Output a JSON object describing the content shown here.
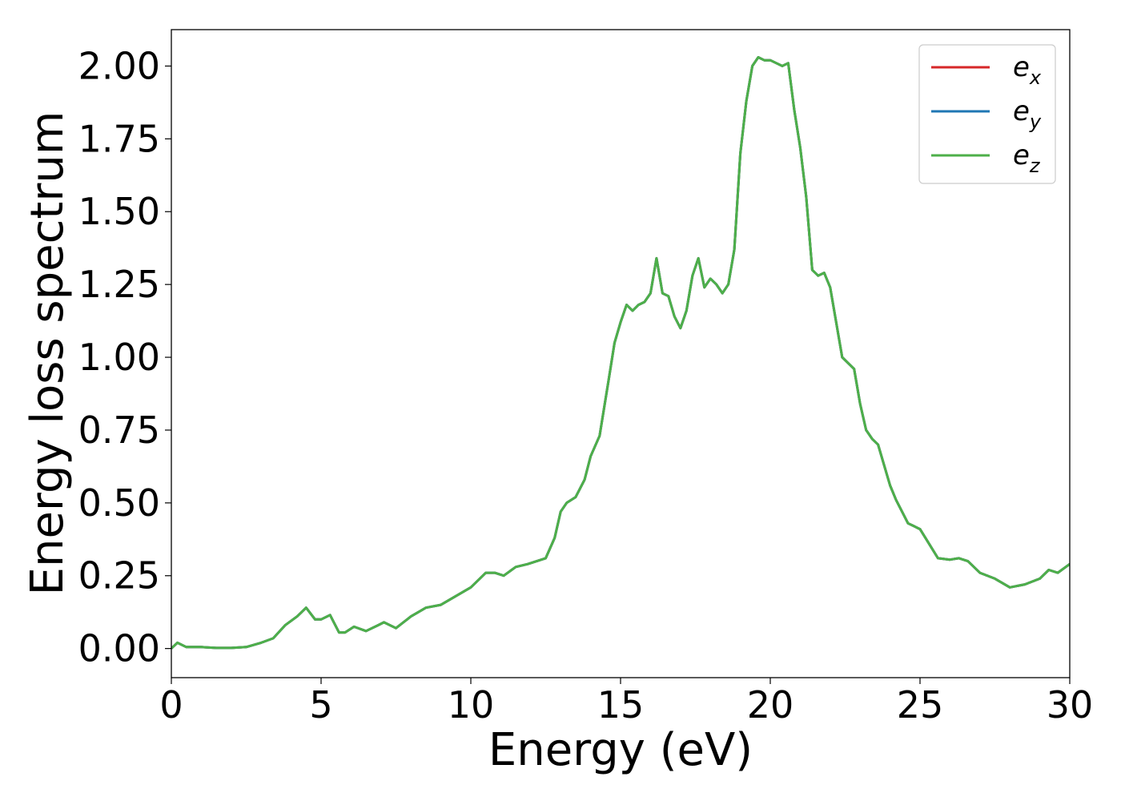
{
  "chart_data": {
    "type": "line",
    "xlabel": "Energy (eV)",
    "ylabel": "Energy loss spectrum",
    "xlim": [
      0,
      30
    ],
    "ylim": [
      -0.1,
      2.125
    ],
    "x_ticks": [
      "0",
      "5",
      "10",
      "15",
      "20",
      "25",
      "30"
    ],
    "x_tick_values": [
      0,
      5,
      10,
      15,
      20,
      25,
      30
    ],
    "y_ticks": [
      "0.00",
      "0.25",
      "0.50",
      "0.75",
      "1.00",
      "1.25",
      "1.50",
      "1.75",
      "2.00"
    ],
    "y_tick_values": [
      0,
      0.25,
      0.5,
      0.75,
      1.0,
      1.25,
      1.5,
      1.75,
      2.0
    ],
    "grid": false,
    "legend_position": "top-right",
    "series": [
      {
        "name": "e",
        "subscript": "x",
        "color": "#d62728"
      },
      {
        "name": "e",
        "subscript": "y",
        "color": "#1f77b4"
      },
      {
        "name": "e",
        "subscript": "z",
        "color": "#4daf4a"
      }
    ],
    "x": [
      0,
      0.2,
      0.5,
      1.0,
      1.5,
      2.0,
      2.5,
      3.0,
      3.4,
      3.8,
      4.2,
      4.5,
      4.8,
      5.0,
      5.3,
      5.6,
      5.8,
      6.1,
      6.5,
      6.9,
      7.1,
      7.5,
      8.0,
      8.5,
      9.0,
      9.5,
      10.0,
      10.3,
      10.5,
      10.8,
      11.1,
      11.5,
      11.9,
      12.2,
      12.5,
      12.8,
      13.0,
      13.2,
      13.5,
      13.8,
      14.0,
      14.3,
      14.6,
      14.8,
      15.0,
      15.2,
      15.4,
      15.6,
      15.8,
      16.0,
      16.2,
      16.4,
      16.6,
      16.8,
      17.0,
      17.2,
      17.4,
      17.6,
      17.8,
      18.0,
      18.2,
      18.4,
      18.6,
      18.8,
      19.0,
      19.2,
      19.4,
      19.6,
      19.8,
      20.0,
      20.2,
      20.4,
      20.6,
      20.8,
      21.0,
      21.2,
      21.4,
      21.6,
      21.8,
      22.0,
      22.2,
      22.4,
      22.6,
      22.8,
      23.0,
      23.2,
      23.4,
      23.6,
      23.8,
      24.0,
      24.2,
      24.4,
      24.6,
      24.8,
      25.0,
      25.3,
      25.6,
      26.0,
      26.3,
      26.6,
      27.0,
      27.5,
      28.0,
      28.5,
      29.0,
      29.3,
      29.6,
      30.0
    ],
    "y": [
      0.0,
      0.02,
      0.005,
      0.005,
      0.002,
      0.002,
      0.005,
      0.02,
      0.035,
      0.08,
      0.11,
      0.14,
      0.1,
      0.1,
      0.115,
      0.055,
      0.055,
      0.075,
      0.06,
      0.08,
      0.09,
      0.07,
      0.11,
      0.14,
      0.15,
      0.18,
      0.21,
      0.24,
      0.26,
      0.26,
      0.25,
      0.28,
      0.29,
      0.3,
      0.31,
      0.38,
      0.47,
      0.5,
      0.52,
      0.58,
      0.66,
      0.73,
      0.92,
      1.05,
      1.12,
      1.18,
      1.16,
      1.18,
      1.19,
      1.22,
      1.34,
      1.22,
      1.21,
      1.14,
      1.1,
      1.16,
      1.28,
      1.34,
      1.24,
      1.27,
      1.25,
      1.22,
      1.25,
      1.37,
      1.7,
      1.88,
      2.0,
      2.03,
      2.02,
      2.02,
      2.01,
      2.0,
      2.01,
      1.85,
      1.72,
      1.55,
      1.3,
      1.28,
      1.29,
      1.24,
      1.12,
      1.0,
      0.98,
      0.96,
      0.84,
      0.75,
      0.72,
      0.7,
      0.63,
      0.56,
      0.51,
      0.47,
      0.43,
      0.42,
      0.41,
      0.36,
      0.31,
      0.305,
      0.31,
      0.3,
      0.26,
      0.24,
      0.21,
      0.22,
      0.24,
      0.27,
      0.26,
      0.29
    ]
  }
}
